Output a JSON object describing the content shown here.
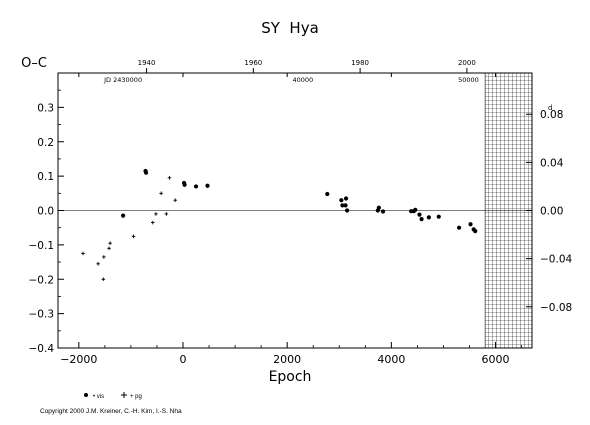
{
  "chart_data": {
    "type": "scatter",
    "title": "SY  Hya",
    "ylabel": "O–C",
    "xlabel": "Epoch",
    "copyright": "Copyright 2000 J.M. Kreiner, C.-H. Kim, I.-S. Nha",
    "xlim": [
      -2400,
      6700
    ],
    "ylim": [
      -0.4,
      0.4
    ],
    "x_ticks": [
      -2000,
      0,
      2000,
      4000,
      6000
    ],
    "x_tick_labels": [
      "−2000",
      "0",
      "2000",
      "4000",
      "6000"
    ],
    "y_ticks": [
      -0.4,
      -0.3,
      -0.2,
      -0.1,
      0.0,
      0.1,
      0.2,
      0.3
    ],
    "y_tick_labels": [
      "−0.4",
      "−0.3",
      "−0.2",
      "−0.1",
      "0.0",
      "0.1",
      "0.2",
      "0.3"
    ],
    "right_axis": {
      "scale_factor": 0.2857,
      "ticks": [
        -0.08,
        -0.04,
        0.0,
        0.04,
        0.08
      ],
      "tick_labels": [
        "−0.08",
        "−0.04",
        "0.00",
        "0.04",
        "0.08"
      ],
      "top_label": "d"
    },
    "top_axis_years": {
      "ticks": [
        1940,
        1960,
        1980,
        2000
      ],
      "tick_epochs": [
        -700,
        1350,
        3400,
        5450
      ]
    },
    "top_axis_jd": {
      "prefix_label": "JD 2430000",
      "prefix_epoch": -1150,
      "ticks": [
        40000,
        50000
      ],
      "tick_labels": [
        "40000",
        "50000"
      ],
      "tick_epochs": [
        2300,
        5480
      ]
    },
    "zero_line": 0.0,
    "hatched_region": {
      "x_from": 5800,
      "x_to": 6700
    },
    "legend": [
      {
        "marker": "filled-circle",
        "label": "• vis"
      },
      {
        "marker": "plus",
        "label": "+ pg"
      }
    ],
    "series": [
      {
        "name": "vis",
        "marker": "filled-circle",
        "points": [
          [
            -1150,
            -0.015
          ],
          [
            -720,
            0.115
          ],
          [
            -710,
            0.11
          ],
          [
            20,
            0.08
          ],
          [
            30,
            0.075
          ],
          [
            250,
            0.07
          ],
          [
            470,
            0.072
          ],
          [
            2770,
            0.048
          ],
          [
            3040,
            0.03
          ],
          [
            3060,
            0.015
          ],
          [
            3120,
            0.015
          ],
          [
            3130,
            0.035
          ],
          [
            3150,
            0.0
          ],
          [
            3740,
            0.0
          ],
          [
            3760,
            0.008
          ],
          [
            3840,
            -0.003
          ],
          [
            4380,
            -0.002
          ],
          [
            4430,
            -0.002
          ],
          [
            4460,
            0.002
          ],
          [
            4540,
            -0.012
          ],
          [
            4580,
            -0.025
          ],
          [
            4720,
            -0.02
          ],
          [
            4910,
            -0.018
          ],
          [
            5300,
            -0.05
          ],
          [
            5520,
            -0.04
          ],
          [
            5580,
            -0.055
          ],
          [
            5610,
            -0.06
          ]
        ]
      },
      {
        "name": "pg",
        "marker": "plus",
        "points": [
          [
            -1920,
            -0.125
          ],
          [
            -1630,
            -0.155
          ],
          [
            -1530,
            -0.2
          ],
          [
            -1420,
            -0.11
          ],
          [
            -1400,
            -0.095
          ],
          [
            -950,
            -0.075
          ],
          [
            -580,
            -0.035
          ],
          [
            -520,
            -0.01
          ],
          [
            -420,
            0.05
          ],
          [
            -320,
            -0.01
          ],
          [
            -260,
            0.095
          ],
          [
            -150,
            0.03
          ],
          [
            -1520,
            -0.135
          ]
        ]
      }
    ]
  }
}
